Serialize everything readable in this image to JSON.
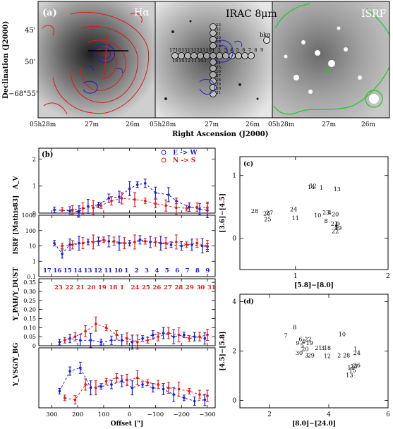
{
  "images": {
    "panel_a_label": "(a)",
    "halpha_label": "Hα",
    "irac_label": "IRAC 8μm",
    "isrf_label": "ISRF",
    "bkg_label": "bkg",
    "xlabel": "Right Ascension (J2000)",
    "ylabel": "Declination (J2000)",
    "dec_ticks": [
      "45'",
      "50'",
      "−68°55'"
    ],
    "ra_ticks": [
      "05h28m",
      "27m",
      "26m"
    ],
    "ew_aperture_numbers": [
      "17",
      "16",
      "15",
      "13",
      "12",
      "11",
      "10",
      "1",
      "2",
      "3",
      "4",
      "5",
      "6",
      "7",
      "8",
      "9"
    ],
    "ew_aperture_numbers_lower": [
      "18",
      "14",
      "12",
      "11",
      "10",
      "1"
    ],
    "ns_aperture_numbers": [
      "23",
      "22",
      "21",
      "20",
      "19",
      "18",
      "1",
      "24",
      "25",
      "26",
      "27",
      "28",
      "29",
      "30",
      "31"
    ]
  },
  "chart_data": [
    {
      "type": "scatter",
      "panel": "(b) top",
      "ylabel": "A_V",
      "xlabel": "",
      "xlim": [
        350,
        -330
      ],
      "ylim": [
        0,
        2.4
      ],
      "yticks": [
        0,
        1,
        2
      ],
      "legend": [
        "E -> W",
        "N -> S"
      ],
      "series": [
        {
          "name": "E -> W",
          "color": "#1a1adc",
          "x": [
            290,
            230,
            195,
            160,
            120,
            80,
            40,
            0,
            -30,
            -60,
            -100,
            -150,
            -180,
            -230,
            -270,
            -300
          ],
          "y": [
            0.12,
            0.08,
            0.06,
            0.25,
            0.3,
            0.55,
            0.6,
            0.9,
            1.05,
            1.1,
            0.75,
            0.68,
            0.45,
            0.22,
            0.15,
            0.1
          ]
        },
        {
          "name": "N -> S",
          "color": "#e01818",
          "x": [
            260,
            220,
            180,
            140,
            110,
            70,
            30,
            -20,
            -60,
            -100,
            -140,
            -180,
            -220,
            -260,
            -300
          ],
          "y": [
            0.1,
            0.12,
            0.18,
            0.2,
            0.28,
            0.45,
            0.55,
            0.5,
            0.45,
            0.35,
            0.28,
            0.2,
            0.18,
            0.22,
            0.2
          ]
        }
      ]
    },
    {
      "type": "scatter",
      "panel": "(b) second",
      "ylabel": "ISRF [Mathis83]",
      "yscale": "log",
      "ylim": [
        0.1,
        1000
      ],
      "yticks": [
        "0.1",
        "1",
        "10",
        "100",
        "1000"
      ],
      "ew_labels": [
        "17",
        "16",
        "15",
        "14",
        "13",
        "12",
        "11",
        "10",
        "1",
        "2",
        "3",
        "4",
        "5",
        "6",
        "7",
        "8",
        "9"
      ],
      "ns_labels": [
        "23",
        "22",
        "21",
        "20",
        "19",
        "18",
        "1",
        "24",
        "25",
        "26",
        "27",
        "28",
        "29",
        "30",
        "31"
      ],
      "series": [
        {
          "name": "E -> W",
          "color": "#1a1adc",
          "x": [
            290,
            260,
            230,
            195,
            160,
            120,
            80,
            40,
            0,
            -40,
            -80,
            -120,
            -160,
            -200,
            -240,
            -280,
            -300
          ],
          "y": [
            15,
            3,
            12,
            15,
            18,
            20,
            20,
            15,
            15,
            25,
            18,
            15,
            12,
            10,
            12,
            10,
            9
          ]
        },
        {
          "name": "N -> S",
          "color": "#e01818",
          "x": [
            260,
            220,
            180,
            140,
            100,
            60,
            20,
            -20,
            -60,
            -100,
            -140,
            -180,
            -220,
            -260,
            -300
          ],
          "y": [
            10,
            12,
            15,
            18,
            25,
            20,
            15,
            18,
            20,
            18,
            15,
            18,
            12,
            15,
            10
          ]
        }
      ]
    },
    {
      "type": "scatter",
      "panel": "(b) third",
      "ylabel": "Y_PAH/Y_DUST",
      "ylim": [
        0,
        0.37
      ],
      "yticks": [
        "0",
        "0.05",
        "0.10",
        "0.15",
        "0.20",
        "0.25",
        "0.30",
        "0.35"
      ],
      "series": [
        {
          "name": "E -> W",
          "color": "#1a1adc",
          "x": [
            270,
            230,
            190,
            150,
            110,
            70,
            30,
            -10,
            -50,
            -90,
            -130,
            -170,
            -210,
            -250,
            -290
          ],
          "y": [
            0.02,
            0.04,
            0.03,
            0.03,
            0.02,
            0.03,
            0.03,
            0.02,
            0.04,
            0.06,
            0.07,
            0.05,
            0.06,
            0.05,
            0.04
          ]
        },
        {
          "name": "N -> S",
          "color": "#e01818",
          "x": [
            250,
            210,
            170,
            130,
            90,
            50,
            10,
            -30,
            -70,
            -110,
            -150,
            -190,
            -230,
            -270,
            -300
          ],
          "y": [
            0.03,
            0.05,
            0.08,
            0.12,
            0.1,
            0.06,
            0.04,
            0.02,
            0.03,
            0.05,
            0.07,
            0.06,
            0.04,
            0.05,
            0.06
          ]
        }
      ]
    },
    {
      "type": "scatter",
      "panel": "(b) bottom",
      "ylabel": "Y_VSG/Y_BG",
      "xlabel": "Offset [\"]",
      "xticks": [
        "300",
        "200",
        "100",
        "0",
        "−100",
        "−200",
        "−300"
      ],
      "ylim": [
        0,
        0.9
      ],
      "series": [
        {
          "name": "E -> W",
          "color": "#1a1adc",
          "x": [
            270,
            230,
            190,
            150,
            110,
            70,
            30,
            -10,
            -50,
            -90,
            -130,
            -170,
            -210,
            -250,
            -290
          ],
          "y": [
            0.25,
            0.55,
            0.6,
            0.3,
            0.32,
            0.35,
            0.4,
            0.3,
            0.35,
            0.3,
            0.28,
            0.2,
            0.15,
            0.1,
            0.12
          ]
        },
        {
          "name": "N -> S",
          "color": "#e01818",
          "x": [
            250,
            210,
            170,
            130,
            90,
            50,
            10,
            -30,
            -70,
            -110,
            -150,
            -190,
            -230,
            -270,
            -300
          ],
          "y": [
            0.15,
            0.12,
            0.35,
            0.3,
            0.4,
            0.45,
            0.42,
            0.45,
            0.38,
            0.35,
            0.3,
            0.28,
            0.25,
            0.2,
            0.18
          ]
        }
      ]
    },
    {
      "type": "scatter",
      "panel": "(c)",
      "xlabel": "[5.8]−[8.0]",
      "ylabel": "[3.6]−[4.5]",
      "xlim": [
        0.4,
        2.0
      ],
      "ylim": [
        -0.5,
        1.3
      ],
      "xticks": [
        1,
        2
      ],
      "yticks": [
        0,
        1
      ],
      "points": [
        {
          "label": "28",
          "x": 0.56,
          "y": 0.4
        },
        {
          "label": "26",
          "x": 0.69,
          "y": 0.36
        },
        {
          "label": "27",
          "x": 0.72,
          "y": 0.37
        },
        {
          "label": "25",
          "x": 0.7,
          "y": 0.27
        },
        {
          "label": "24",
          "x": 0.98,
          "y": 0.43
        },
        {
          "label": "11",
          "x": 1.0,
          "y": 0.29
        },
        {
          "label": "14",
          "x": 1.17,
          "y": 0.78
        },
        {
          "label": "12",
          "x": 1.19,
          "y": 0.8
        },
        {
          "label": "1",
          "x": 1.28,
          "y": 0.77
        },
        {
          "label": "13",
          "x": 1.45,
          "y": 0.75
        },
        {
          "label": "10",
          "x": 1.24,
          "y": 0.33
        },
        {
          "label": "23",
          "x": 1.33,
          "y": 0.38
        },
        {
          "label": "4",
          "x": 1.37,
          "y": 0.38
        },
        {
          "label": "20",
          "x": 1.43,
          "y": 0.35
        },
        {
          "label": "8",
          "x": 1.33,
          "y": 0.24
        },
        {
          "label": "21",
          "x": 1.42,
          "y": 0.2
        },
        {
          "label": "9",
          "x": 1.46,
          "y": 0.2
        },
        {
          "label": "3",
          "x": 1.44,
          "y": 0.16
        },
        {
          "label": "5",
          "x": 1.44,
          "y": 0.14
        },
        {
          "label": "19",
          "x": 1.46,
          "y": 0.13
        },
        {
          "label": "22",
          "x": 1.43,
          "y": 0.08
        }
      ]
    },
    {
      "type": "scatter",
      "panel": "(d)",
      "xlabel": "[8.0]−[24.0]",
      "ylabel": "[4.5]−[5.8]",
      "xlim": [
        1.0,
        6.0
      ],
      "ylim": [
        -0.3,
        4.3
      ],
      "xticks": [
        2,
        4,
        6
      ],
      "yticks": [
        0,
        2,
        4
      ],
      "points": [
        {
          "label": "8",
          "x": 2.85,
          "y": 2.88
        },
        {
          "label": "7",
          "x": 2.55,
          "y": 2.55
        },
        {
          "label": "6",
          "x": 3.05,
          "y": 2.4
        },
        {
          "label": "22",
          "x": 3.3,
          "y": 2.4
        },
        {
          "label": "4",
          "x": 3.15,
          "y": 2.3
        },
        {
          "label": "9",
          "x": 2.95,
          "y": 2.25
        },
        {
          "label": "19",
          "x": 3.35,
          "y": 2.25
        },
        {
          "label": "5",
          "x": 3.1,
          "y": 2.15
        },
        {
          "label": "20",
          "x": 3.2,
          "y": 2.0
        },
        {
          "label": "30",
          "x": 3.0,
          "y": 1.85
        },
        {
          "label": "3",
          "x": 3.25,
          "y": 1.75
        },
        {
          "label": "29",
          "x": 3.4,
          "y": 1.75
        },
        {
          "label": "21",
          "x": 3.65,
          "y": 2.05
        },
        {
          "label": "3",
          "x": 3.8,
          "y": 2.05
        },
        {
          "label": "18",
          "x": 3.95,
          "y": 2.05
        },
        {
          "label": "12",
          "x": 3.95,
          "y": 1.72
        },
        {
          "label": "2",
          "x": 4.35,
          "y": 1.75
        },
        {
          "label": "28",
          "x": 4.6,
          "y": 1.75
        },
        {
          "label": "10",
          "x": 4.45,
          "y": 2.6
        },
        {
          "label": "1",
          "x": 4.9,
          "y": 2.0
        },
        {
          "label": "24",
          "x": 4.95,
          "y": 1.85
        },
        {
          "label": "23",
          "x": 4.85,
          "y": 1.3
        },
        {
          "label": "26",
          "x": 4.95,
          "y": 1.35
        },
        {
          "label": "11",
          "x": 4.75,
          "y": 1.25
        },
        {
          "label": "15",
          "x": 4.8,
          "y": 1.15
        },
        {
          "label": "13",
          "x": 4.7,
          "y": 0.95
        }
      ]
    }
  ]
}
